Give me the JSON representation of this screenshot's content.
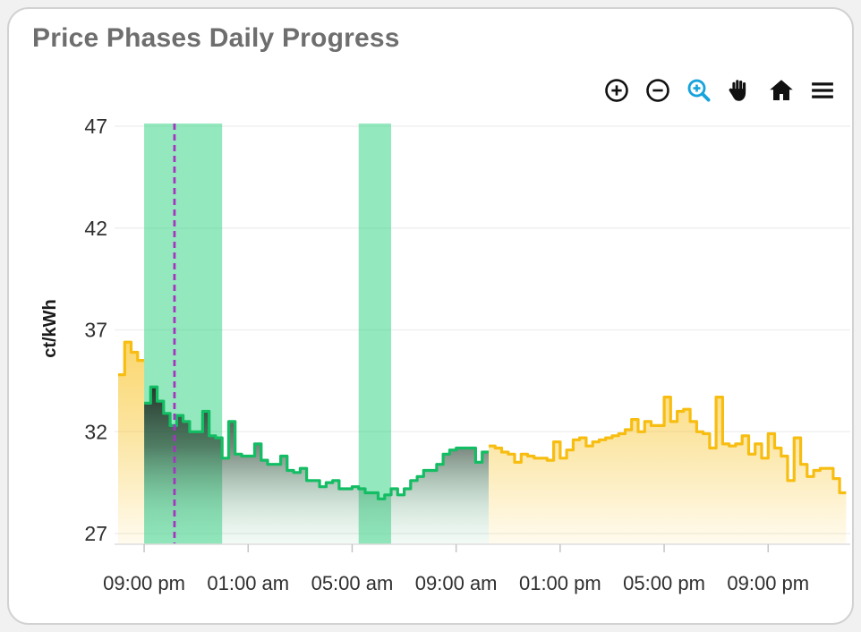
{
  "header": {
    "title": "Price Phases Daily Progress"
  },
  "modebar": {
    "icon_color": "#111111",
    "active_color": "#17a3dc",
    "buttons": [
      "zoom-in",
      "zoom-out",
      "box-zoom",
      "pan",
      "reset-axes-home",
      "menu"
    ]
  },
  "chart_data": {
    "type": "area",
    "title": "Price Phases Daily Progress",
    "xlabel": "",
    "ylabel": "ct/kWh",
    "y_ticks": [
      27,
      32,
      37,
      42,
      47
    ],
    "ylim": [
      26.5,
      47.2
    ],
    "x_tick_labels": [
      "09:00 pm",
      "01:00 am",
      "05:00 am",
      "09:00 am",
      "01:00 pm",
      "05:00 pm",
      "09:00 pm"
    ],
    "x_tick_hours_from_start": [
      1,
      5,
      9,
      13,
      17,
      21,
      25
    ],
    "x_start_time": "20:00",
    "interval_minutes": 15,
    "grid": "horizontal-only",
    "legend": "none",
    "series": [
      {
        "name": "price-normal-phase-evening",
        "phase": "normal",
        "color": "#f7bd11",
        "start_hour_offset": 0,
        "start_time": "20:00",
        "values": [
          34.8,
          36.4,
          35.9,
          35.5
        ]
      },
      {
        "name": "price-cheap-phase-night",
        "phase": "cheap",
        "color": "#13bd63",
        "start_hour_offset": 1,
        "start_time": "21:00",
        "values": [
          33.4,
          34.2,
          33.5,
          32.9,
          32.3,
          32.8,
          32.5,
          32.0,
          32.0,
          33.0,
          31.8,
          31.7,
          30.7,
          32.5,
          30.9,
          30.8,
          30.8,
          31.4,
          30.6,
          30.4,
          30.4,
          30.8,
          30.1,
          30.0,
          30.2,
          29.6,
          29.6,
          29.3,
          29.5,
          29.6,
          29.2,
          29.2,
          29.3,
          29.2,
          29.0,
          29.0,
          28.7,
          28.9,
          29.2,
          28.9,
          29.2,
          29.6,
          29.8,
          30.1,
          30.1,
          30.4,
          30.9,
          31.1,
          31.2,
          31.2,
          31.2,
          30.5,
          31.0
        ]
      },
      {
        "name": "price-normal-phase-day",
        "phase": "normal",
        "color": "#f7bd11",
        "start_hour_offset": 14.25,
        "start_time": "10:15",
        "values": [
          31.3,
          31.2,
          31.0,
          30.9,
          30.5,
          30.9,
          30.8,
          30.7,
          30.7,
          30.6,
          31.5,
          30.7,
          31.1,
          31.6,
          31.7,
          31.3,
          31.5,
          31.6,
          31.7,
          31.8,
          31.9,
          32.1,
          32.6,
          32.0,
          32.5,
          32.3,
          32.3,
          33.7,
          32.5,
          33.0,
          33.1,
          32.5,
          32.0,
          31.9,
          31.2,
          33.7,
          31.4,
          31.3,
          31.4,
          31.8,
          30.9,
          31.4,
          30.7,
          31.9,
          31.2,
          30.8,
          29.6,
          31.7,
          30.4,
          29.8,
          30.1,
          30.2,
          30.2,
          29.7,
          29.0
        ]
      }
    ],
    "phase_bands": [
      {
        "name": "cheap-phase-window-1",
        "start": "21:00",
        "end": "00:00",
        "start_hour_offset": 1,
        "end_hour_offset": 4
      },
      {
        "name": "cheap-phase-window-2",
        "start": "05:15",
        "end": "06:30",
        "start_hour_offset": 9.25,
        "end_hour_offset": 10.5
      }
    ],
    "band_color": "rgba(61,213,136,0.55)",
    "now_line": {
      "time": "22:10",
      "hour_offset": 2.1667,
      "color": "#a833c2",
      "style": "dashed"
    },
    "colors": {
      "grid": "rgba(0,0,0,0.06)",
      "axis_line": "#dddddd",
      "tick_mark": "#c4c4c4",
      "tick_label": "#2f2f2f",
      "axis_title": "#1a1a1a"
    }
  }
}
